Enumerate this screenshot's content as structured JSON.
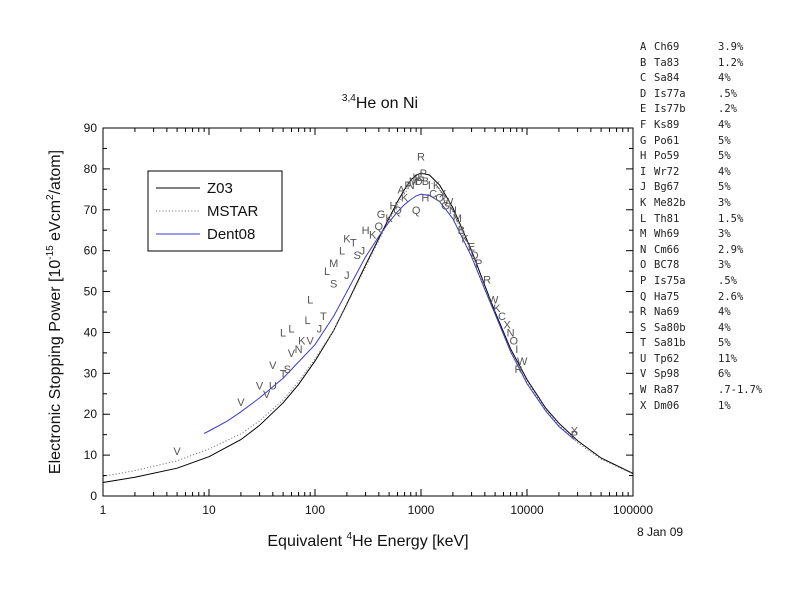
{
  "date_note": "8 Jan 09",
  "references": [
    {
      "letter": "A",
      "code": "Ch69",
      "err": "3.9%"
    },
    {
      "letter": "B",
      "code": "Ta83",
      "err": "1.2%"
    },
    {
      "letter": "C",
      "code": "Sa84",
      "err": "4%"
    },
    {
      "letter": "D",
      "code": "Is77a",
      "err": ".5%"
    },
    {
      "letter": "E",
      "code": "Is77b",
      "err": ".2%"
    },
    {
      "letter": "F",
      "code": "Ks89",
      "err": "4%"
    },
    {
      "letter": "G",
      "code": "Po61",
      "err": "5%"
    },
    {
      "letter": "H",
      "code": "Po59",
      "err": "5%"
    },
    {
      "letter": "I",
      "code": "Wr72",
      "err": "4%"
    },
    {
      "letter": "J",
      "code": "Bg67",
      "err": "5%"
    },
    {
      "letter": "K",
      "code": "Me82b",
      "err": "3%"
    },
    {
      "letter": "L",
      "code": "Th81",
      "err": "1.5%"
    },
    {
      "letter": "M",
      "code": "Wh69",
      "err": "3%"
    },
    {
      "letter": "N",
      "code": "Cm66",
      "err": "2.9%"
    },
    {
      "letter": "O",
      "code": "BC78",
      "err": "3%"
    },
    {
      "letter": "P",
      "code": "Is75a",
      "err": ".5%"
    },
    {
      "letter": "Q",
      "code": "Ha75",
      "err": "2.6%"
    },
    {
      "letter": "R",
      "code": "Na69",
      "err": "4%"
    },
    {
      "letter": "S",
      "code": "Sa80b",
      "err": "4%"
    },
    {
      "letter": "T",
      "code": "Sa81b",
      "err": "5%"
    },
    {
      "letter": "U",
      "code": "Tp62",
      "err": "11%"
    },
    {
      "letter": "V",
      "code": "Sp98",
      "err": "6%"
    },
    {
      "letter": "W",
      "code": "Ra87",
      "err": ".7-1.7%"
    },
    {
      "letter": "X",
      "code": "Dm06",
      "err": "1%"
    }
  ],
  "chart_data": {
    "type": "line",
    "title": {
      "sup": "3,4",
      "text": "He on Ni"
    },
    "xlabel": {
      "pre": "Equivalent ",
      "sup": "4",
      "post": "He Energy [keV]"
    },
    "ylabel": {
      "pre": "Electronic Stopping Power [10",
      "sup": "-15",
      "mid": " eVcm",
      "sup2": "2",
      "post": "/atom]"
    },
    "x_scale": "log",
    "xlim": [
      1,
      100000
    ],
    "ylim": [
      0,
      90
    ],
    "x_ticks": [
      1,
      10,
      100,
      1000,
      10000,
      100000
    ],
    "x_tick_labels": [
      "1",
      "10",
      "100",
      "1000",
      "10000",
      "100000"
    ],
    "y_ticks": [
      0,
      10,
      20,
      30,
      40,
      50,
      60,
      70,
      80,
      90
    ],
    "y_tick_labels": [
      "0",
      "10",
      "20",
      "30",
      "40",
      "50",
      "60",
      "70",
      "80",
      "90"
    ],
    "grid": false,
    "legend_position": "top-left",
    "series": [
      {
        "name": "Z03",
        "color": "#000000",
        "dash": "solid",
        "points": [
          [
            1,
            3.3
          ],
          [
            2,
            4.6
          ],
          [
            5,
            6.8
          ],
          [
            10,
            9.6
          ],
          [
            20,
            13.8
          ],
          [
            30,
            17.3
          ],
          [
            50,
            22.8
          ],
          [
            70,
            27.3
          ],
          [
            100,
            33
          ],
          [
            150,
            40.5
          ],
          [
            200,
            47
          ],
          [
            300,
            56.5
          ],
          [
            400,
            63
          ],
          [
            500,
            68
          ],
          [
            600,
            72
          ],
          [
            700,
            75
          ],
          [
            800,
            77.2
          ],
          [
            900,
            78.5
          ],
          [
            1000,
            79
          ],
          [
            1200,
            78.5
          ],
          [
            1500,
            76
          ],
          [
            2000,
            70.5
          ],
          [
            3000,
            60
          ],
          [
            4000,
            51.5
          ],
          [
            5000,
            45
          ],
          [
            7000,
            36
          ],
          [
            10000,
            28.5
          ],
          [
            15000,
            21.5
          ],
          [
            20000,
            17.8
          ],
          [
            30000,
            13.5
          ],
          [
            50000,
            9.3
          ],
          [
            100000,
            5.5
          ]
        ]
      },
      {
        "name": "MSTAR",
        "color": "#7a7a7a",
        "dash": "dotted",
        "points": [
          [
            1,
            4.8
          ],
          [
            2,
            6.2
          ],
          [
            5,
            8.6
          ],
          [
            10,
            11.5
          ],
          [
            20,
            15.2
          ],
          [
            30,
            18.4
          ],
          [
            50,
            23.5
          ],
          [
            70,
            28
          ],
          [
            100,
            33.5
          ],
          [
            150,
            40.5
          ],
          [
            200,
            46.8
          ],
          [
            300,
            56
          ],
          [
            400,
            62.5
          ],
          [
            500,
            67.5
          ],
          [
            600,
            71.3
          ],
          [
            700,
            74
          ],
          [
            800,
            76
          ],
          [
            900,
            77
          ],
          [
            1000,
            77.5
          ],
          [
            1200,
            77
          ],
          [
            1500,
            74.8
          ],
          [
            2000,
            69.5
          ],
          [
            3000,
            59.5
          ],
          [
            4000,
            51
          ],
          [
            5000,
            44.5
          ],
          [
            7000,
            35.5
          ],
          [
            10000,
            28
          ],
          [
            15000,
            21
          ],
          [
            20000,
            17.3
          ],
          [
            30000,
            13
          ],
          [
            50000,
            9
          ],
          [
            100000,
            5.4
          ]
        ]
      },
      {
        "name": "Dent08",
        "color": "#3a3ad0",
        "dash": "solid",
        "points": [
          [
            9,
            15.3
          ],
          [
            10,
            15.9
          ],
          [
            15,
            18.4
          ],
          [
            20,
            20.6
          ],
          [
            30,
            24
          ],
          [
            50,
            28.8
          ],
          [
            70,
            32.8
          ],
          [
            100,
            37
          ],
          [
            150,
            44
          ],
          [
            200,
            50
          ],
          [
            300,
            58.5
          ],
          [
            400,
            63.5
          ],
          [
            500,
            67
          ],
          [
            600,
            69.5
          ],
          [
            700,
            71.3
          ],
          [
            800,
            72.5
          ],
          [
            900,
            73.4
          ],
          [
            1000,
            73.8
          ],
          [
            1200,
            73.5
          ],
          [
            1500,
            72
          ],
          [
            2000,
            67.8
          ],
          [
            3000,
            58.5
          ],
          [
            4000,
            50.5
          ],
          [
            5000,
            44.5
          ],
          [
            7000,
            35.3
          ],
          [
            10000,
            27.5
          ],
          [
            15000,
            20.8
          ],
          [
            20000,
            17
          ],
          [
            28000,
            13.8
          ]
        ]
      }
    ],
    "scatter_points": [
      [
        "V",
        5,
        11
      ],
      [
        "V",
        20,
        23
      ],
      [
        "V",
        30,
        27
      ],
      [
        "V",
        35,
        25
      ],
      [
        "U",
        40,
        27
      ],
      [
        "V",
        40,
        32
      ],
      [
        "T",
        50,
        30
      ],
      [
        "S",
        55,
        31
      ],
      [
        "V",
        60,
        35
      ],
      [
        "L",
        50,
        40
      ],
      [
        "L",
        60,
        41
      ],
      [
        "N",
        70,
        36
      ],
      [
        "K",
        75,
        38
      ],
      [
        "L",
        85,
        43
      ],
      [
        "V",
        90,
        38
      ],
      [
        "L",
        90,
        48
      ],
      [
        "J",
        110,
        41
      ],
      [
        "T",
        120,
        44
      ],
      [
        "S",
        150,
        52
      ],
      [
        "L",
        130,
        55
      ],
      [
        "M",
        150,
        57
      ],
      [
        "J",
        200,
        54
      ],
      [
        "S",
        250,
        59
      ],
      [
        "T",
        230,
        62
      ],
      [
        "J",
        280,
        60
      ],
      [
        "K",
        200,
        63
      ],
      [
        "L",
        180,
        60
      ],
      [
        "H",
        300,
        65
      ],
      [
        "K",
        350,
        64
      ],
      [
        "Q",
        400,
        66
      ],
      [
        "G",
        420,
        69
      ],
      [
        "K",
        500,
        68
      ],
      [
        "H",
        550,
        71
      ],
      [
        "Q",
        600,
        70
      ],
      [
        "K",
        700,
        73
      ],
      [
        "A",
        650,
        75
      ],
      [
        "F",
        750,
        76
      ],
      [
        "N",
        800,
        76
      ],
      [
        "M",
        850,
        77
      ],
      [
        "K",
        900,
        78
      ],
      [
        "D",
        950,
        77
      ],
      [
        "E",
        1000,
        78
      ],
      [
        "B",
        1100,
        77
      ],
      [
        "P",
        1050,
        79
      ],
      [
        "I",
        1200,
        76
      ],
      [
        "H",
        1100,
        73
      ],
      [
        "Q",
        900,
        70
      ],
      [
        "R",
        1000,
        83
      ],
      [
        "C",
        1300,
        74
      ],
      [
        "O",
        1500,
        73
      ],
      [
        "K",
        1400,
        76
      ],
      [
        "G",
        1700,
        71
      ],
      [
        "X",
        1600,
        74
      ],
      [
        "W",
        1800,
        72
      ],
      [
        "N",
        2000,
        70
      ],
      [
        "M",
        2200,
        68
      ],
      [
        "B",
        2400,
        65
      ],
      [
        "K",
        2600,
        63
      ],
      [
        "E",
        3000,
        61
      ],
      [
        "D",
        3200,
        59
      ],
      [
        "P",
        3500,
        57
      ],
      [
        "R",
        4200,
        53
      ],
      [
        "W",
        4800,
        48
      ],
      [
        "K",
        5200,
        46
      ],
      [
        "C",
        5800,
        44
      ],
      [
        "X",
        6500,
        42
      ],
      [
        "N",
        7000,
        40
      ],
      [
        "O",
        7500,
        38
      ],
      [
        "I",
        8000,
        36
      ],
      [
        "W",
        9000,
        33
      ],
      [
        "R",
        8300,
        31
      ],
      [
        "P",
        28000,
        15
      ],
      [
        "X",
        28000,
        16
      ]
    ]
  }
}
